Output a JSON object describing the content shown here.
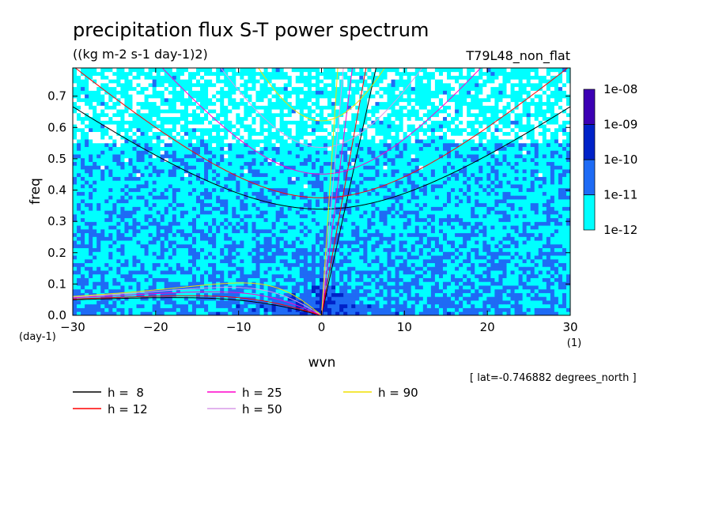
{
  "chart_data": {
    "type": "heatmap",
    "title": "precipitation flux S-T power spectrum",
    "units": "((kg m-2 s-1 day-1)2)",
    "run_name": "T79L48_non_flat",
    "xlabel": "wvn",
    "ylabel": "freq",
    "x_unit": "(1)",
    "y_unit": "(day-1)",
    "xlim": [
      -30,
      30
    ],
    "ylim": [
      0,
      0.79
    ],
    "x_ticks": [
      -30,
      -20,
      -10,
      0,
      10,
      20,
      30
    ],
    "x_tick_labels": [
      "−30",
      "−20",
      "−10",
      "0",
      "10",
      "20",
      "30"
    ],
    "y_ticks": [
      0,
      0.1,
      0.2,
      0.3,
      0.4,
      0.5,
      0.6,
      0.7
    ],
    "y_tick_labels": [
      "0.0",
      "0.1",
      "0.2",
      "0.3",
      "0.4",
      "0.5",
      "0.6",
      "0.7"
    ],
    "colorbar": {
      "levels": [
        "1e-12",
        "1e-11",
        "1e-10",
        "1e-09",
        "1e-08"
      ],
      "colors": [
        "#00ffff",
        "#1e6bf5",
        "#0022c8",
        "#3c00b4"
      ],
      "background_below_min": "#ffffff"
    },
    "annotation": "[ lat=-0.746882 degrees_north ]",
    "dispersion_curves": [
      {
        "label": "h =  8",
        "h": 8,
        "color": "#000000"
      },
      {
        "label": "h = 12",
        "h": 12,
        "color": "#ff0000"
      },
      {
        "label": "h = 25",
        "h": 25,
        "color": "#ff00cc"
      },
      {
        "label": "h = 50",
        "h": 50,
        "color": "#d99ae8"
      },
      {
        "label": "h = 90",
        "h": 90,
        "color": "#f0e000"
      }
    ]
  }
}
